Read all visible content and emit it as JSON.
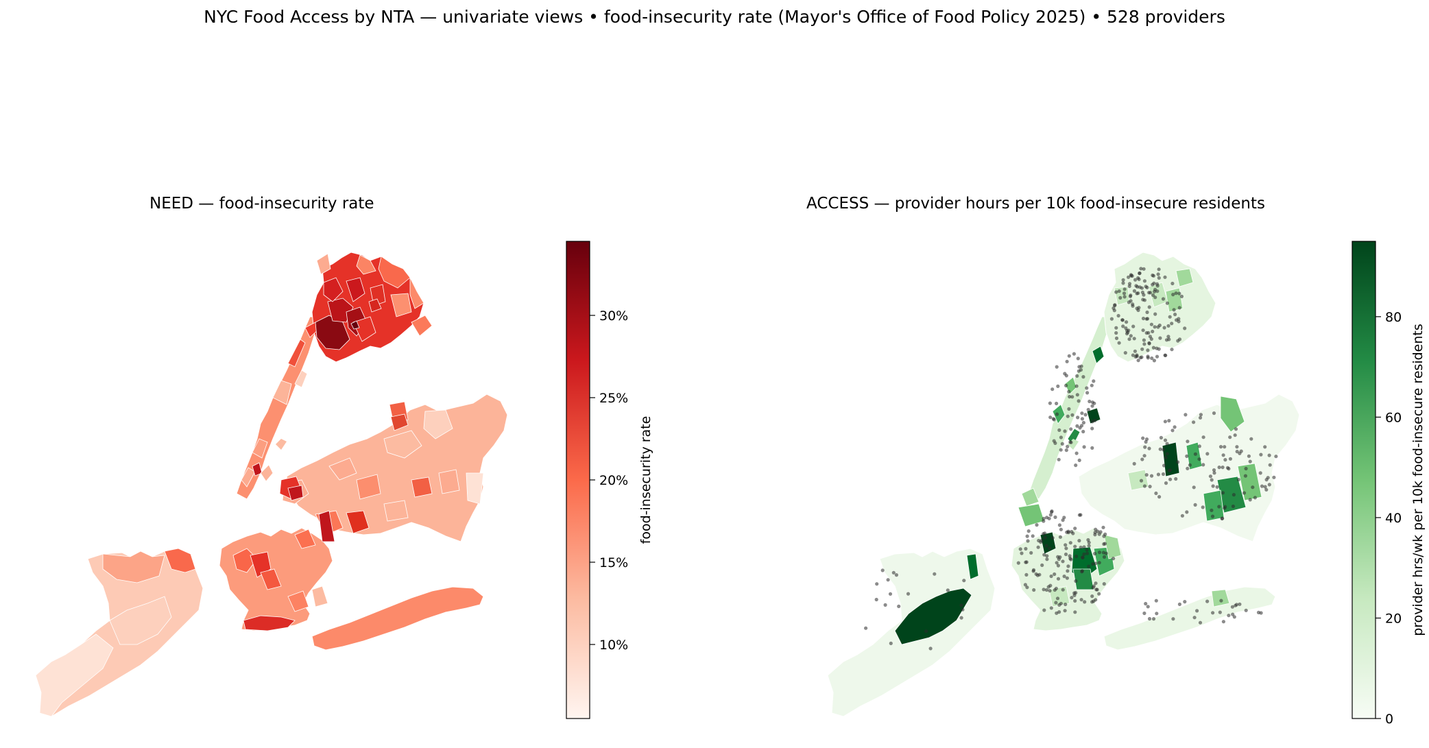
{
  "suptitle": "NYC Food Access by NTA — univariate views  •  food-insecurity rate (Mayor's Office of Food Policy 2025)  •  528 providers",
  "panels": {
    "need": {
      "title": "NEED — food-insecurity rate",
      "colorbar_label": "food-insecurity rate",
      "ticks": [
        "10%",
        "15%",
        "20%",
        "25%",
        "30%"
      ],
      "tick_values": [
        0.1,
        0.15,
        0.2,
        0.25,
        0.3
      ],
      "range": [
        0.055,
        0.345
      ],
      "colormap": [
        "#fff5f0",
        "#fcbba1",
        "#fb6a4a",
        "#cb181d",
        "#67000d"
      ]
    },
    "access": {
      "title": "ACCESS — provider hours per 10k food-insecure residents",
      "colorbar_label": "provider hrs/wk per 10k food-insecure residents",
      "ticks": [
        "0",
        "20",
        "40",
        "60",
        "80"
      ],
      "tick_values": [
        0,
        20,
        40,
        60,
        80
      ],
      "range": [
        0,
        95
      ],
      "colormap": [
        "#f7fcf5",
        "#c7e9c0",
        "#74c476",
        "#238b45",
        "#00441b"
      ],
      "provider_count": 528
    }
  }
}
